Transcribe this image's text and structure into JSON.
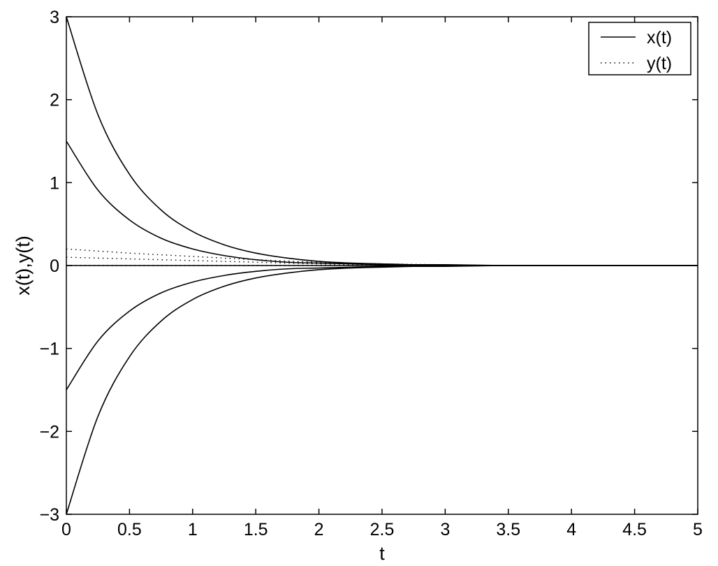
{
  "chart_data": {
    "type": "line",
    "xlabel": "t",
    "ylabel": "x(t),y(t)",
    "xlim": [
      0,
      5
    ],
    "ylim": [
      -3,
      3
    ],
    "xticks": [
      0,
      0.5,
      1,
      1.5,
      2,
      2.5,
      3,
      3.5,
      4,
      4.5,
      5
    ],
    "xtick_labels": [
      "0",
      "0.5",
      "1",
      "1.5",
      "2",
      "2.5",
      "3",
      "3.5",
      "4",
      "4.5",
      "5"
    ],
    "yticks": [
      -3,
      -2,
      -1,
      0,
      1,
      2,
      3
    ],
    "ytick_labels": [
      "−3",
      "−2",
      "−1",
      "0",
      "1",
      "2",
      "3"
    ],
    "grid": false,
    "legend": {
      "position": "top-right",
      "entries": [
        {
          "label": "x(t)",
          "style": "solid"
        },
        {
          "label": "y(t)",
          "style": "dotted"
        }
      ]
    },
    "line_color": "#000000",
    "series": [
      {
        "name": "x(t)",
        "style": "solid",
        "x": [
          0,
          0.25,
          0.5,
          0.75,
          1,
          1.25,
          1.5,
          1.75,
          2,
          2.25,
          2.5,
          2.75,
          3,
          3.5,
          4,
          4.5,
          5
        ],
        "y": [
          3,
          1.82,
          1.1,
          0.67,
          0.41,
          0.25,
          0.15,
          0.09,
          0.05,
          0.03,
          0.02,
          0.01,
          0.01,
          0,
          0,
          0,
          0
        ]
      },
      {
        "name": "x(t)",
        "style": "solid",
        "x": [
          0,
          0.25,
          0.5,
          0.75,
          1,
          1.25,
          1.5,
          1.75,
          2,
          2.25,
          2.5,
          2.75,
          3,
          3.5,
          4,
          4.5,
          5
        ],
        "y": [
          1.5,
          0.91,
          0.55,
          0.33,
          0.2,
          0.12,
          0.07,
          0.04,
          0.03,
          0.02,
          0.01,
          0,
          0,
          0,
          0,
          0,
          0
        ]
      },
      {
        "name": "x(t)",
        "style": "solid",
        "x": [
          0,
          5
        ],
        "y": [
          0,
          0
        ]
      },
      {
        "name": "x(t)",
        "style": "solid",
        "x": [
          0,
          0.25,
          0.5,
          0.75,
          1,
          1.25,
          1.5,
          1.75,
          2,
          2.25,
          2.5,
          2.75,
          3,
          3.5,
          4,
          4.5,
          5
        ],
        "y": [
          -1.5,
          -0.91,
          -0.55,
          -0.33,
          -0.2,
          -0.12,
          -0.07,
          -0.04,
          -0.03,
          -0.02,
          -0.01,
          0,
          0,
          0,
          0,
          0,
          0
        ]
      },
      {
        "name": "x(t)",
        "style": "solid",
        "x": [
          0,
          0.25,
          0.5,
          0.75,
          1,
          1.25,
          1.5,
          1.75,
          2,
          2.25,
          2.5,
          2.75,
          3,
          3.5,
          4,
          4.5,
          5
        ],
        "y": [
          -3,
          -1.82,
          -1.1,
          -0.67,
          -0.41,
          -0.25,
          -0.15,
          -0.09,
          -0.05,
          -0.03,
          -0.02,
          -0.01,
          -0.01,
          0,
          0,
          0,
          0
        ]
      },
      {
        "name": "y(t)",
        "style": "dotted",
        "x": [
          0,
          0.5,
          1,
          1.5,
          2,
          2.5,
          3,
          3.5
        ],
        "y": [
          0.2,
          0.15,
          0.11,
          0.07,
          0.04,
          0.02,
          0.01,
          0
        ]
      },
      {
        "name": "y(t)",
        "style": "dotted",
        "x": [
          0,
          0.5,
          1,
          1.5,
          2,
          2.5,
          3,
          3.5
        ],
        "y": [
          0.1,
          0.08,
          0.06,
          0.04,
          0.02,
          0.01,
          0,
          0
        ]
      },
      {
        "name": "y(t)",
        "style": "dotted",
        "x": [
          0,
          5
        ],
        "y": [
          0,
          0
        ]
      }
    ]
  }
}
